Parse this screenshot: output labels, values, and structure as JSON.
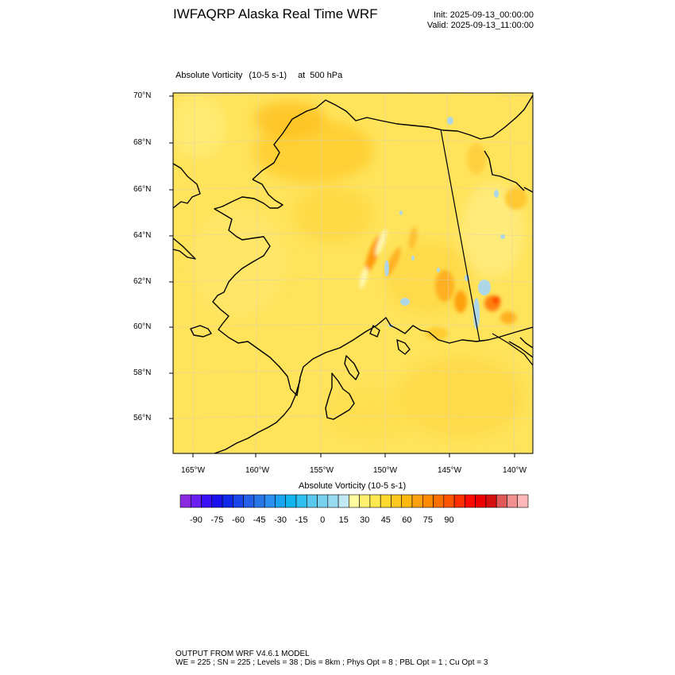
{
  "header": {
    "title": "IWFAQRP Alaska Real Time WRF",
    "init": "Init: 2025-09-13_00:00:00",
    "valid": "Valid: 2025-09-13_11:00:00"
  },
  "plot": {
    "field": "Absolute Vorticity",
    "units": "(10-5 s-1)",
    "at": "at",
    "level": "500 hPa"
  },
  "axes": {
    "lat_labels": [
      "70°N",
      "68°N",
      "66°N",
      "64°N",
      "62°N",
      "60°N",
      "58°N",
      "56°N"
    ],
    "lon_labels": [
      "165°W",
      "160°W",
      "155°W",
      "150°W",
      "145°W",
      "140°W"
    ]
  },
  "colorbar": {
    "title": "Absolute Vorticity  (10-5 s-1)",
    "tick_labels": [
      "-90",
      "-75",
      "-60",
      "-45",
      "-30",
      "-15",
      "0",
      "15",
      "30",
      "45",
      "60",
      "75",
      "90"
    ],
    "colors": [
      "#8a2be2",
      "#6a1ff0",
      "#3a10f5",
      "#1a10f0",
      "#1028e8",
      "#1a45e8",
      "#2460e8",
      "#2878e8",
      "#2b8ff0",
      "#1aa3f0",
      "#10b5f0",
      "#30c0f0",
      "#58c8ef",
      "#78d0ef",
      "#98daf0",
      "#c0e8f5",
      "#fffaa0",
      "#fff070",
      "#ffe850",
      "#ffd830",
      "#ffc820",
      "#ffb810",
      "#ffa010",
      "#ff8a00",
      "#ff7000",
      "#ff5500",
      "#ff3000",
      "#ff0a00",
      "#ec0000",
      "#d40f10",
      "#e05858",
      "#f09090",
      "#ffb8b8"
    ]
  },
  "footer": {
    "line1": "OUTPUT FROM WRF V4.6.1 MODEL",
    "line2": "WE = 225 ; SN = 225 ; Levels = 38 ; Dis = 8km ; Phys Opt = 8 ; PBL Opt = 1 ; Cu Opt = 3"
  }
}
